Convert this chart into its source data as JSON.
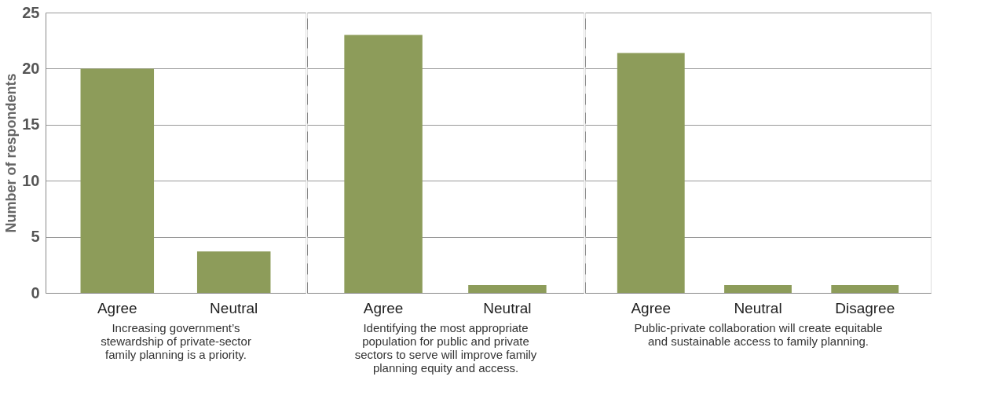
{
  "chart_data": [
    {
      "type": "bar",
      "ylabel": "Number of respondents",
      "xlabel": "Increasing government’s stewardship of private-sector family planning is a priority.",
      "categories": [
        "Agree",
        "Neutral"
      ],
      "values": [
        20,
        3.7
      ],
      "color": "#8d9c5a",
      "ylim": [
        0,
        25
      ],
      "yticks": [
        0,
        5,
        10,
        15,
        20,
        25
      ],
      "grid": "y"
    },
    {
      "type": "bar",
      "xlabel": "Identifying the most appropriate population for public and private sectors to serve will improve family planning equity and access.",
      "categories": [
        "Agree",
        "Neutral"
      ],
      "values": [
        23,
        0.7
      ],
      "color": "#8d9c5a",
      "ylim": [
        0,
        25
      ],
      "grid": "y",
      "tick_labels": "x"
    },
    {
      "type": "bar",
      "xlabel": "Public-private collaboration will create equitable and sustainable access to family planning.",
      "categories": [
        "Agree",
        "Neutral",
        "Disagree"
      ],
      "values": [
        21.4,
        0.7,
        0.7
      ],
      "color": "#8d9c5a",
      "ylim": [
        0,
        25
      ],
      "grid": "y",
      "tick_labels": "x"
    }
  ]
}
